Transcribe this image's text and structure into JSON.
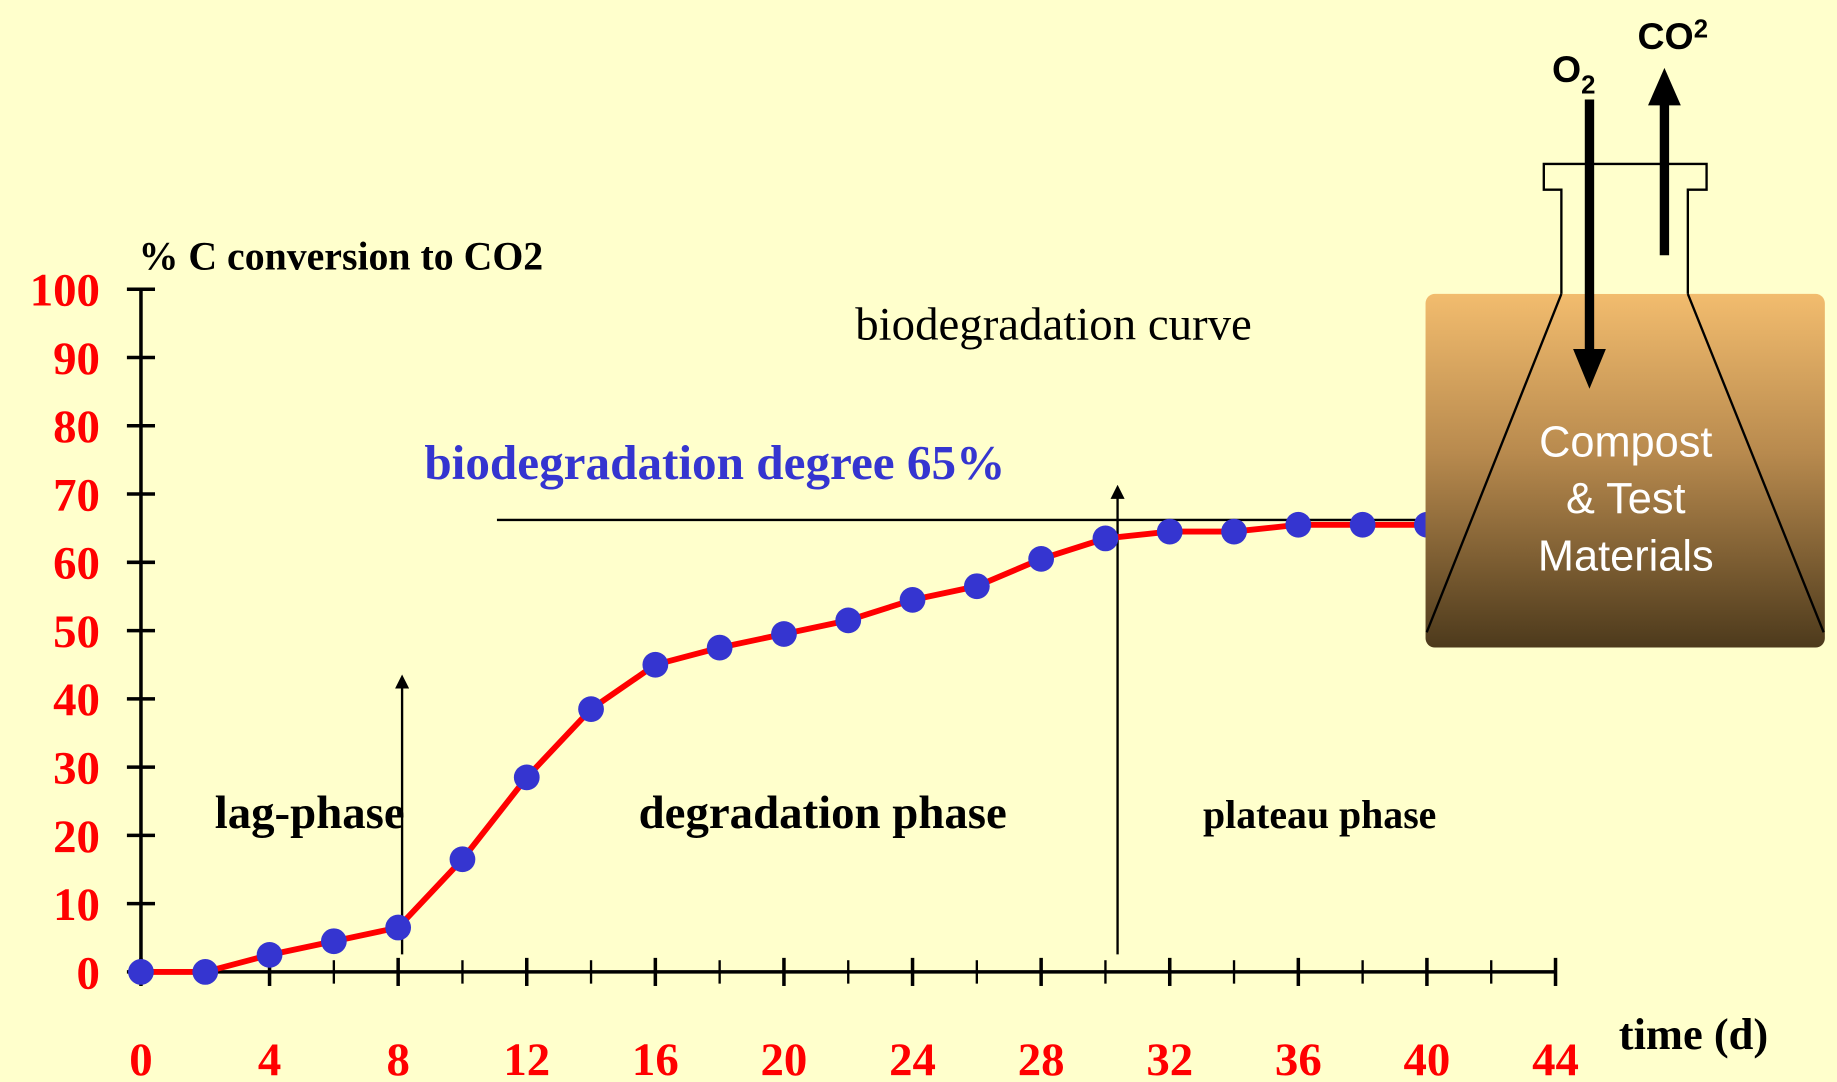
{
  "chart_data": {
    "type": "line",
    "title": "biodegradation curve",
    "y_label": "% C conversion to CO2",
    "x_label": "time (d)",
    "x": [
      0,
      2,
      4,
      6,
      8,
      10,
      12,
      14,
      16,
      18,
      20,
      22,
      24,
      26,
      28,
      30,
      32,
      34,
      36,
      38,
      40
    ],
    "series": [
      {
        "name": "biodegradation curve",
        "color": "#ff0000",
        "marker_color": "#3535d0",
        "values": [
          0,
          0,
          2.5,
          4.5,
          6.5,
          16.5,
          28.5,
          38.5,
          45,
          47.5,
          49.5,
          51.5,
          54.5,
          56.5,
          60.5,
          63.5,
          64.5,
          64.5,
          65.5,
          65.5,
          65.5
        ]
      }
    ],
    "xlim": [
      0,
      44
    ],
    "xticks": [
      0,
      4,
      8,
      12,
      16,
      20,
      24,
      28,
      32,
      36,
      40,
      44
    ],
    "x_minor_ticks": [
      2,
      6,
      10,
      14,
      18,
      22,
      26,
      30,
      34,
      38,
      42
    ],
    "ylim": [
      0,
      100
    ],
    "yticks": [
      0,
      10,
      20,
      30,
      40,
      50,
      60,
      70,
      80,
      90,
      100
    ],
    "annotations": [
      "biodegradation degree 65%",
      "lag-phase",
      "degradation phase",
      "plateau phase"
    ],
    "flask": {
      "contents": [
        "Compost",
        "& Test",
        "Materials"
      ],
      "in_gas": [
        "O",
        "2"
      ],
      "out_gas": [
        "CO",
        "2"
      ]
    }
  }
}
